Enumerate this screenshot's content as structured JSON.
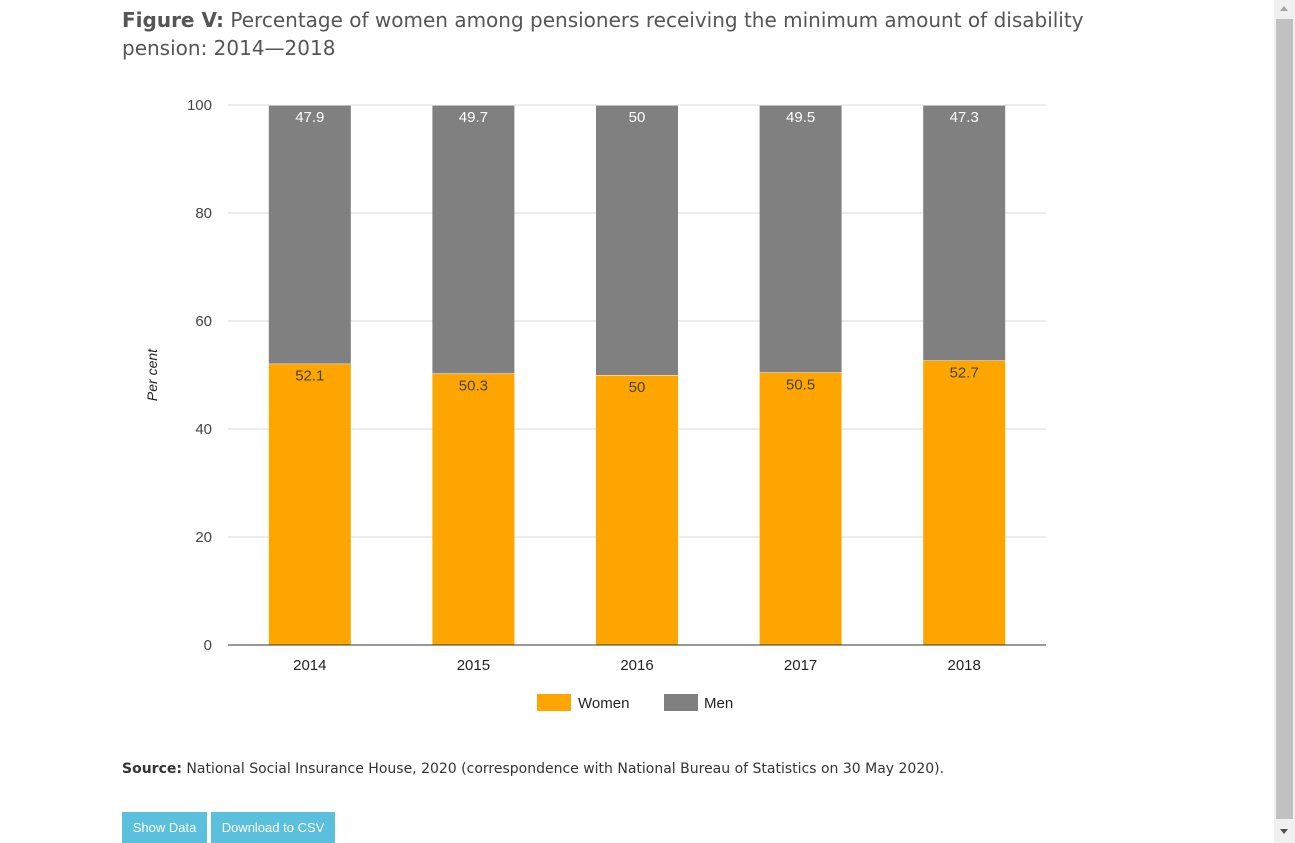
{
  "figure": {
    "label": "Figure V:",
    "title": "Percentage of women among pensioners receiving the minimum amount of disability pension: 2014—2018"
  },
  "chart_data": {
    "type": "bar",
    "stacked": true,
    "categories": [
      "2014",
      "2015",
      "2016",
      "2017",
      "2018"
    ],
    "series": [
      {
        "name": "Women",
        "values": [
          52.1,
          50.3,
          50,
          50.5,
          52.7
        ],
        "labels": [
          "52.1",
          "50.3",
          "50",
          "50.5",
          "52.7"
        ],
        "color": "#ffa500"
      },
      {
        "name": "Men",
        "values": [
          47.9,
          49.7,
          50,
          49.5,
          47.3
        ],
        "labels": [
          "47.9",
          "49.7",
          "50",
          "49.5",
          "47.3"
        ],
        "color": "#808080"
      }
    ],
    "ylabel": "Per cent",
    "ylim": [
      0,
      100
    ],
    "yticks": [
      "0",
      "20",
      "40",
      "60",
      "80",
      "100"
    ],
    "grid": true,
    "legend": "bottom-center"
  },
  "source": {
    "label": "Source:",
    "text": "National Social Insurance House, 2020 (correspondence with National Bureau of Statistics on 30 May 2020)."
  },
  "buttons": {
    "show_data": "Show Data",
    "download_csv": "Download to CSV"
  },
  "colors": {
    "women": "#ffa500",
    "men": "#808080",
    "button": "#5bc0de"
  }
}
